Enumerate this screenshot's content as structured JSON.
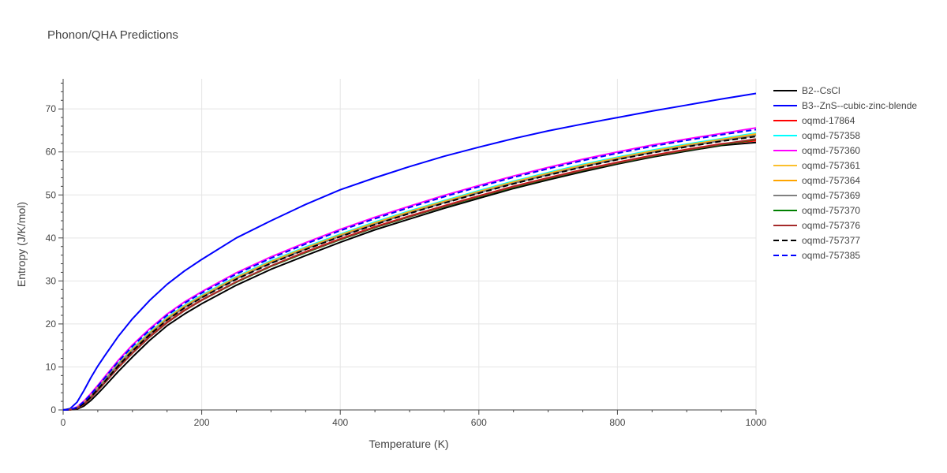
{
  "chart_data": {
    "type": "line",
    "title": "Phonon/QHA Predictions",
    "xlabel": "Temperature (K)",
    "ylabel": "Entropy (J/K/mol)",
    "xlim": [
      0,
      1000
    ],
    "ylim": [
      0,
      77
    ],
    "xticks": [
      0,
      200,
      400,
      600,
      800,
      1000
    ],
    "yticks": [
      0,
      10,
      20,
      30,
      40,
      50,
      60,
      70
    ],
    "grid": true,
    "legend_position": "right",
    "x": [
      0,
      10,
      20,
      30,
      40,
      50,
      60,
      80,
      100,
      125,
      150,
      175,
      200,
      250,
      300,
      350,
      400,
      450,
      500,
      550,
      600,
      650,
      700,
      750,
      800,
      850,
      900,
      950,
      1000
    ],
    "series": [
      {
        "name": "B2--CsCl",
        "color": "#000000",
        "dash": "solid",
        "values": [
          0,
          0.02,
          0.2,
          0.9,
          2.2,
          3.8,
          5.5,
          9.0,
          12.3,
          16.2,
          19.6,
          22.3,
          24.7,
          29.0,
          32.7,
          35.9,
          39.0,
          41.9,
          44.4,
          46.9,
          49.2,
          51.5,
          53.5,
          55.4,
          57.2,
          58.8,
          60.2,
          61.5,
          62.2
        ]
      },
      {
        "name": "B3--ZnS--cubic-zinc-blende",
        "color": "#0000ff",
        "dash": "solid",
        "values": [
          0,
          0.3,
          1.8,
          4.5,
          7.5,
          10.2,
          12.6,
          17.2,
          21.2,
          25.5,
          29.2,
          32.3,
          35.0,
          40.0,
          44.0,
          47.8,
          51.2,
          54.0,
          56.6,
          59.0,
          61.1,
          63.1,
          64.9,
          66.5,
          68.0,
          69.5,
          70.9,
          72.3,
          73.6
        ]
      },
      {
        "name": "oqmd-17864",
        "color": "#ff0000",
        "dash": "solid",
        "values": [
          0,
          0.05,
          0.4,
          1.4,
          2.9,
          4.6,
          6.4,
          10.0,
          13.3,
          17.1,
          20.4,
          23.2,
          25.6,
          29.8,
          33.5,
          36.8,
          39.8,
          42.6,
          45.1,
          47.5,
          49.8,
          52.0,
          54.0,
          55.9,
          57.6,
          59.2,
          60.6,
          61.9,
          62.6
        ]
      },
      {
        "name": "oqmd-757358",
        "color": "#00ffff",
        "dash": "solid",
        "values": [
          0,
          0.07,
          0.55,
          1.75,
          3.4,
          5.2,
          7.1,
          10.9,
          14.3,
          18.1,
          21.5,
          24.3,
          26.7,
          31.0,
          34.7,
          37.9,
          40.9,
          43.7,
          46.3,
          48.7,
          51.0,
          53.2,
          55.2,
          57.1,
          58.8,
          60.4,
          61.8,
          63.1,
          64.4
        ]
      },
      {
        "name": "oqmd-757360",
        "color": "#ff00ff",
        "dash": "solid",
        "values": [
          0,
          0.09,
          0.7,
          2.05,
          3.8,
          5.7,
          7.7,
          11.6,
          15.1,
          18.9,
          22.3,
          25.1,
          27.5,
          31.9,
          35.6,
          38.9,
          42.0,
          44.8,
          47.4,
          49.9,
          52.2,
          54.4,
          56.4,
          58.3,
          60.0,
          61.6,
          63.0,
          64.3,
          65.6
        ]
      },
      {
        "name": "oqmd-757361",
        "color": "#fbc02d",
        "dash": "solid",
        "values": [
          0,
          0.07,
          0.55,
          1.7,
          3.3,
          5.1,
          7.0,
          10.7,
          14.1,
          17.9,
          21.3,
          24.1,
          26.5,
          30.8,
          34.5,
          37.7,
          40.7,
          43.5,
          46.1,
          48.5,
          50.8,
          53.0,
          55.0,
          56.9,
          58.6,
          60.2,
          61.6,
          62.9,
          64.2
        ]
      },
      {
        "name": "oqmd-757364",
        "color": "#ffa500",
        "dash": "solid",
        "values": [
          0,
          0.06,
          0.5,
          1.6,
          3.2,
          5.0,
          6.9,
          10.6,
          14.0,
          17.8,
          21.2,
          24.0,
          26.4,
          30.7,
          34.4,
          37.6,
          40.6,
          43.4,
          46.0,
          48.4,
          50.7,
          52.9,
          54.9,
          56.8,
          58.5,
          60.1,
          61.5,
          62.8,
          64.0
        ]
      },
      {
        "name": "oqmd-757369",
        "color": "#808080",
        "dash": "solid",
        "values": [
          0,
          0.06,
          0.45,
          1.55,
          3.1,
          4.9,
          6.8,
          10.5,
          13.8,
          17.6,
          21.0,
          23.8,
          26.2,
          30.5,
          34.2,
          37.4,
          40.4,
          43.2,
          45.8,
          48.2,
          50.5,
          52.7,
          54.7,
          56.6,
          58.3,
          59.9,
          61.3,
          62.6,
          63.8
        ]
      },
      {
        "name": "oqmd-757370",
        "color": "#008000",
        "dash": "solid",
        "values": [
          0,
          0.04,
          0.35,
          1.3,
          2.8,
          4.5,
          6.3,
          9.9,
          13.2,
          17.0,
          20.3,
          23.1,
          25.5,
          29.7,
          33.4,
          36.6,
          39.6,
          42.4,
          44.9,
          47.3,
          49.6,
          51.8,
          53.8,
          55.7,
          57.4,
          59.0,
          60.4,
          61.7,
          62.9
        ]
      },
      {
        "name": "oqmd-757376",
        "color": "#a52a2a",
        "dash": "solid",
        "values": [
          0,
          0.04,
          0.35,
          1.3,
          2.8,
          4.5,
          6.3,
          9.9,
          13.2,
          17.0,
          20.3,
          23.1,
          25.5,
          29.8,
          33.5,
          36.7,
          39.7,
          42.5,
          45.0,
          47.4,
          49.7,
          51.9,
          53.9,
          55.8,
          57.5,
          59.1,
          60.5,
          61.8,
          63.0
        ]
      },
      {
        "name": "oqmd-757377",
        "color": "#000000",
        "dash": "dash",
        "values": [
          0,
          0.05,
          0.45,
          1.5,
          3.0,
          4.8,
          6.6,
          10.3,
          13.7,
          17.5,
          20.9,
          23.7,
          26.1,
          30.4,
          34.1,
          37.3,
          40.3,
          43.1,
          45.7,
          48.1,
          50.4,
          52.6,
          54.6,
          56.5,
          58.2,
          59.8,
          61.2,
          62.5,
          63.6
        ]
      },
      {
        "name": "oqmd-757385",
        "color": "#0000ff",
        "dash": "dash",
        "values": [
          0,
          0.08,
          0.6,
          1.9,
          3.6,
          5.5,
          7.4,
          11.3,
          14.8,
          18.6,
          22.0,
          24.8,
          27.2,
          31.6,
          35.3,
          38.6,
          41.7,
          44.5,
          47.1,
          49.6,
          51.9,
          54.1,
          56.1,
          58.0,
          59.7,
          61.3,
          62.7,
          64.0,
          65.2
        ]
      }
    ]
  }
}
